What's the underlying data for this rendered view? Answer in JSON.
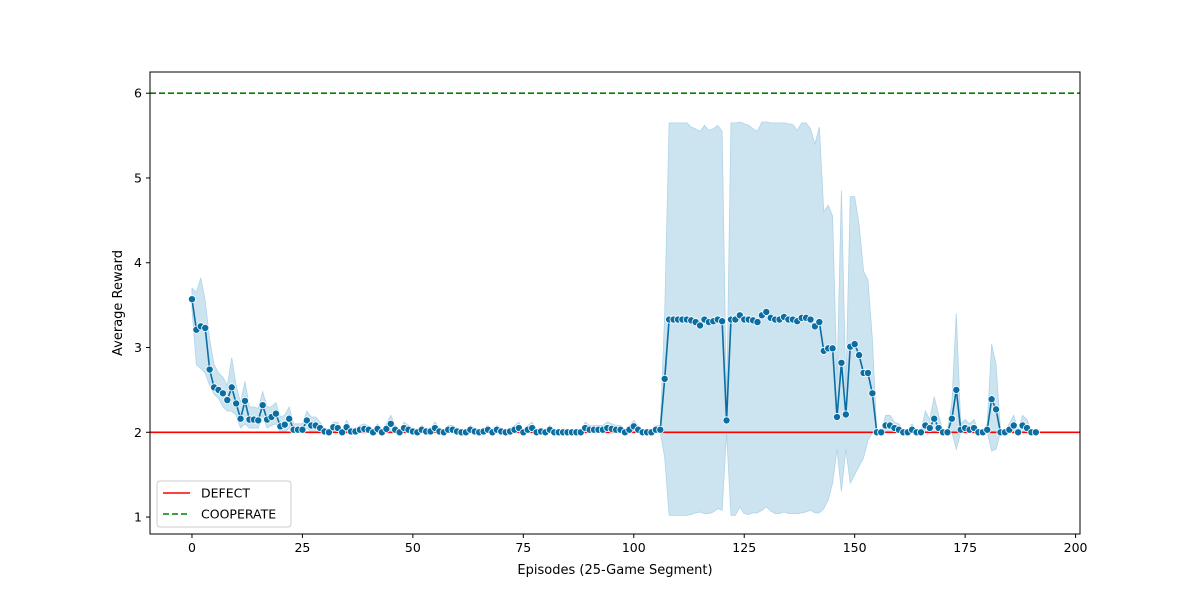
{
  "chart_data": {
    "type": "line",
    "xlabel": "Episodes (25-Game Segment)",
    "ylabel": "Average Reward",
    "xlim": [
      -9.5,
      201
    ],
    "ylim": [
      0.8,
      6.25
    ],
    "xticks": [
      0,
      25,
      50,
      75,
      100,
      125,
      150,
      175,
      200
    ],
    "yticks": [
      1,
      2,
      3,
      4,
      5,
      6
    ],
    "grid": false,
    "legend_position": "lower-left",
    "colors": {
      "series": "#0a6ea3",
      "band": "#b0d4e8",
      "defect": "#ff0000",
      "cooperate": "#008000"
    },
    "reference_lines": [
      {
        "name": "DEFECT",
        "y": 2,
        "style": "solid",
        "color": "#ff0000"
      },
      {
        "name": "COOPERATE",
        "y": 6,
        "style": "dashed",
        "color": "#008000"
      }
    ],
    "series": [
      {
        "x_start": 0,
        "values": [
          3.57,
          3.21,
          3.25,
          3.23,
          2.74,
          2.53,
          2.5,
          2.46,
          2.38,
          2.53,
          2.34,
          2.16,
          2.37,
          2.15,
          2.15,
          2.14,
          2.32,
          2.15,
          2.18,
          2.22,
          2.07,
          2.09,
          2.16,
          2.03,
          2.03,
          2.03,
          2.14,
          2.08,
          2.08,
          2.05,
          2.01,
          2.0,
          2.06,
          2.05,
          2.0,
          2.06,
          2.01,
          2.01,
          2.03,
          2.04,
          2.03,
          2.0,
          2.04,
          2.0,
          2.04,
          2.1,
          2.03,
          2.0,
          2.05,
          2.03,
          2.01,
          2.0,
          2.03,
          2.01,
          2.01,
          2.05,
          2.01,
          2.0,
          2.03,
          2.03,
          2.01,
          2.0,
          2.0,
          2.03,
          2.01,
          2.0,
          2.01,
          2.03,
          2.0,
          2.03,
          2.01,
          2.0,
          2.01,
          2.03,
          2.05,
          2.0,
          2.03,
          2.05,
          2.0,
          2.01,
          2.0,
          2.03,
          2.0,
          2.0,
          2.0,
          2.0,
          2.0,
          2.0,
          2.0,
          2.05,
          2.03,
          2.03,
          2.03,
          2.03,
          2.05,
          2.04,
          2.03,
          2.03,
          2.0,
          2.03,
          2.07,
          2.03,
          2.0,
          2.0,
          2.0,
          2.03,
          2.03,
          2.63,
          3.33,
          3.33,
          3.33,
          3.33,
          3.33,
          3.32,
          3.3,
          3.26,
          3.33,
          3.3,
          3.31,
          3.33,
          3.31,
          2.14,
          3.33,
          3.33,
          3.38,
          3.33,
          3.33,
          3.32,
          3.3,
          3.38,
          3.42,
          3.35,
          3.33,
          3.33,
          3.36,
          3.33,
          3.33,
          3.31,
          3.35,
          3.35,
          3.33,
          3.25,
          3.3,
          2.96,
          2.99,
          2.99,
          2.18,
          2.82,
          2.21,
          3.01,
          3.04,
          2.91,
          2.7,
          2.7,
          2.46,
          2.0,
          2.0,
          2.08,
          2.08,
          2.05,
          2.03,
          2.0,
          2.0,
          2.03,
          2.0,
          2.0,
          2.08,
          2.05,
          2.16,
          2.05,
          2.0,
          2.0,
          2.16,
          2.5,
          2.03,
          2.05,
          2.03,
          2.05,
          2.0,
          2.0,
          2.03,
          2.39,
          2.27,
          2.0,
          2.0,
          2.03,
          2.08,
          2.0,
          2.08,
          2.05,
          2.0,
          2.0
        ],
        "band_lower": [
          3.45,
          2.8,
          2.75,
          2.7,
          2.55,
          2.45,
          2.4,
          2.3,
          2.25,
          2.25,
          2.2,
          2.05,
          2.1,
          2.05,
          2.05,
          2.05,
          2.2,
          2.05,
          2.08,
          2.1,
          2.0,
          2.0,
          2.05,
          2.0,
          2.0,
          2.0,
          2.05,
          2.0,
          2.0,
          2.0,
          2.0,
          2.0,
          2.0,
          2.0,
          2.0,
          2.0,
          2.0,
          2.0,
          2.0,
          2.0,
          2.0,
          2.0,
          2.0,
          2.0,
          2.0,
          2.02,
          2.0,
          2.0,
          2.0,
          2.0,
          2.0,
          2.0,
          2.0,
          2.0,
          2.0,
          2.0,
          2.0,
          2.0,
          2.0,
          2.0,
          2.0,
          2.0,
          2.0,
          2.0,
          2.0,
          2.0,
          2.0,
          2.0,
          2.0,
          2.0,
          2.0,
          2.0,
          2.0,
          2.0,
          2.0,
          2.0,
          2.0,
          2.0,
          2.0,
          2.0,
          2.0,
          2.0,
          2.0,
          2.0,
          2.0,
          2.0,
          2.0,
          2.0,
          2.0,
          2.0,
          2.0,
          2.0,
          2.0,
          2.0,
          2.0,
          2.0,
          2.0,
          2.0,
          2.0,
          2.0,
          2.0,
          2.0,
          2.0,
          2.0,
          2.0,
          2.0,
          2.0,
          1.7,
          1.02,
          1.02,
          1.02,
          1.02,
          1.02,
          1.03,
          1.05,
          1.06,
          1.04,
          1.04,
          1.06,
          1.1,
          1.08,
          2.0,
          1.02,
          1.02,
          1.12,
          1.04,
          1.03,
          1.05,
          1.05,
          1.08,
          1.12,
          1.07,
          1.04,
          1.04,
          1.06,
          1.04,
          1.04,
          1.04,
          1.05,
          1.06,
          1.08,
          1.05,
          1.05,
          1.1,
          1.2,
          1.4,
          1.8,
          1.3,
          1.8,
          1.4,
          1.5,
          1.6,
          1.7,
          1.9,
          2.0,
          2.0,
          2.0,
          2.0,
          2.0,
          2.0,
          2.0,
          2.0,
          2.0,
          2.0,
          2.0,
          2.0,
          2.0,
          2.0,
          2.0,
          2.0,
          2.0,
          2.0,
          2.0,
          1.8,
          2.0,
          2.0,
          2.0,
          2.0,
          2.0,
          2.0,
          2.0,
          1.78,
          1.8,
          2.0,
          2.0,
          2.0,
          2.0,
          2.0,
          2.0,
          2.0,
          2.0,
          2.0
        ],
        "band_upper": [
          3.7,
          3.65,
          3.82,
          3.55,
          3.1,
          2.8,
          2.7,
          2.65,
          2.55,
          2.88,
          2.55,
          2.35,
          2.6,
          2.3,
          2.3,
          2.28,
          2.48,
          2.3,
          2.3,
          2.35,
          2.18,
          2.2,
          2.3,
          2.1,
          2.1,
          2.1,
          2.25,
          2.18,
          2.18,
          2.12,
          2.05,
          2.02,
          2.12,
          2.12,
          2.02,
          2.14,
          2.05,
          2.05,
          2.08,
          2.1,
          2.07,
          2.02,
          2.1,
          2.02,
          2.1,
          2.2,
          2.08,
          2.02,
          2.12,
          2.08,
          2.05,
          2.02,
          2.08,
          2.05,
          2.05,
          2.12,
          2.05,
          2.02,
          2.08,
          2.08,
          2.05,
          2.02,
          2.02,
          2.08,
          2.05,
          2.02,
          2.05,
          2.08,
          2.02,
          2.08,
          2.05,
          2.02,
          2.05,
          2.08,
          2.12,
          2.02,
          2.08,
          2.12,
          2.02,
          2.05,
          2.02,
          2.08,
          2.02,
          2.02,
          2.02,
          2.02,
          2.02,
          2.02,
          2.02,
          2.12,
          2.08,
          2.08,
          2.08,
          2.08,
          2.12,
          2.1,
          2.08,
          2.08,
          2.02,
          2.08,
          2.14,
          2.08,
          2.02,
          2.02,
          2.02,
          2.08,
          2.08,
          3.4,
          5.65,
          5.65,
          5.65,
          5.65,
          5.65,
          5.6,
          5.58,
          5.55,
          5.62,
          5.56,
          5.58,
          5.62,
          5.55,
          2.3,
          5.65,
          5.65,
          5.66,
          5.64,
          5.62,
          5.58,
          5.55,
          5.66,
          5.66,
          5.65,
          5.65,
          5.65,
          5.65,
          5.64,
          5.63,
          5.56,
          5.65,
          5.65,
          5.58,
          5.4,
          5.6,
          4.6,
          4.68,
          4.55,
          2.6,
          4.85,
          2.5,
          4.78,
          4.78,
          4.45,
          3.9,
          3.8,
          3.1,
          2.0,
          2.0,
          2.2,
          2.2,
          2.12,
          2.1,
          2.02,
          2.02,
          2.1,
          2.02,
          2.02,
          2.25,
          2.15,
          2.42,
          2.2,
          2.02,
          2.02,
          2.35,
          3.4,
          2.1,
          2.15,
          2.1,
          2.15,
          2.02,
          2.02,
          2.1,
          3.04,
          2.8,
          2.02,
          2.02,
          2.1,
          2.2,
          2.02,
          2.2,
          2.15,
          2.02,
          2.02
        ]
      }
    ]
  }
}
